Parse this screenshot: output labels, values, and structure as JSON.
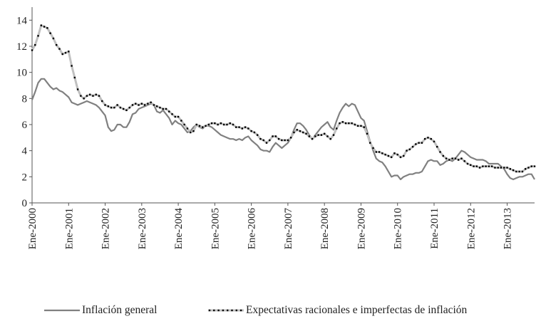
{
  "chart_data": {
    "type": "line",
    "categories": [
      "Ene-2000",
      null,
      null,
      null,
      null,
      null,
      null,
      null,
      null,
      null,
      null,
      null,
      "Ene-2001",
      null,
      null,
      null,
      null,
      null,
      null,
      null,
      null,
      null,
      null,
      null,
      "Ene-2002",
      null,
      null,
      null,
      null,
      null,
      null,
      null,
      null,
      null,
      null,
      null,
      "Ene-2003",
      null,
      null,
      null,
      null,
      null,
      null,
      null,
      null,
      null,
      null,
      null,
      "Ene-2004",
      null,
      null,
      null,
      null,
      null,
      null,
      null,
      null,
      null,
      null,
      null,
      "Ene-2005",
      null,
      null,
      null,
      null,
      null,
      null,
      null,
      null,
      null,
      null,
      null,
      "Ene-2006",
      null,
      null,
      null,
      null,
      null,
      null,
      null,
      null,
      null,
      null,
      null,
      "Ene-2007",
      null,
      null,
      null,
      null,
      null,
      null,
      null,
      null,
      null,
      null,
      null,
      "Ene-2008",
      null,
      null,
      null,
      null,
      null,
      null,
      null,
      null,
      null,
      null,
      null,
      "Ene-2009",
      null,
      null,
      null,
      null,
      null,
      null,
      null,
      null,
      null,
      null,
      null,
      "Ene-2010",
      null,
      null,
      null,
      null,
      null,
      null,
      null,
      null,
      null,
      null,
      null,
      "Ene-2011",
      null,
      null,
      null,
      null,
      null,
      null,
      null,
      null,
      null,
      null,
      null,
      "Ene-2012",
      null,
      null,
      null,
      null,
      null,
      null,
      null,
      null,
      null,
      null,
      null,
      "Ene-2013",
      null,
      null,
      null,
      null,
      null,
      null,
      null,
      null,
      null
    ],
    "series": [
      {
        "name": "Inflación general",
        "color": "#808080",
        "markers": false,
        "values": [
          7.9,
          8.5,
          9.2,
          9.5,
          9.5,
          9.2,
          8.9,
          8.7,
          8.8,
          8.6,
          8.5,
          8.3,
          8.1,
          7.7,
          7.6,
          7.5,
          7.6,
          7.7,
          7.8,
          7.7,
          7.6,
          7.5,
          7.3,
          7.0,
          6.7,
          5.8,
          5.5,
          5.6,
          6.0,
          6.0,
          5.8,
          5.8,
          6.2,
          6.8,
          6.9,
          7.2,
          7.3,
          7.4,
          7.5,
          7.6,
          7.5,
          7.0,
          6.9,
          7.1,
          6.8,
          6.5,
          6.0,
          6.3,
          6.1,
          6.0,
          5.7,
          5.4,
          5.5,
          5.8,
          6.0,
          5.8,
          5.7,
          5.9,
          5.9,
          5.8,
          5.6,
          5.4,
          5.2,
          5.1,
          5.0,
          4.9,
          4.9,
          4.8,
          4.9,
          4.8,
          5.0,
          5.1,
          4.8,
          4.6,
          4.4,
          4.1,
          4.0,
          4.0,
          3.9,
          4.3,
          4.6,
          4.4,
          4.2,
          4.4,
          4.6,
          5.0,
          5.6,
          6.1,
          6.1,
          5.9,
          5.6,
          5.2,
          4.9,
          5.2,
          5.5,
          5.8,
          6.0,
          6.2,
          5.8,
          5.6,
          6.3,
          6.9,
          7.3,
          7.6,
          7.4,
          7.6,
          7.5,
          7.0,
          6.5,
          6.3,
          5.5,
          4.7,
          4.0,
          3.4,
          3.2,
          3.1,
          2.8,
          2.4,
          2.0,
          2.1,
          2.1,
          1.8,
          2.0,
          2.1,
          2.2,
          2.2,
          2.3,
          2.3,
          2.4,
          2.8,
          3.2,
          3.3,
          3.2,
          3.2,
          2.9,
          3.0,
          3.2,
          3.3,
          3.2,
          3.4,
          3.7,
          4.0,
          3.9,
          3.7,
          3.5,
          3.4,
          3.3,
          3.3,
          3.3,
          3.2,
          3.0,
          3.0,
          3.0,
          3.0,
          2.8,
          2.6,
          2.2,
          1.9,
          1.8,
          1.9,
          2.0,
          2.0,
          2.1,
          2.2,
          2.2,
          1.8
        ]
      },
      {
        "name": "Expectativas racionales e imperfectas de inflación",
        "color": "#c0c0c0",
        "marker_color": "#000000",
        "markers": true,
        "values": [
          11.7,
          12.1,
          12.8,
          13.6,
          13.5,
          13.4,
          13.0,
          12.6,
          12.1,
          11.8,
          11.4,
          11.5,
          11.6,
          10.5,
          9.6,
          8.7,
          8.2,
          8.0,
          8.2,
          8.3,
          8.2,
          8.3,
          8.2,
          7.8,
          7.5,
          7.4,
          7.3,
          7.3,
          7.5,
          7.3,
          7.2,
          7.1,
          7.3,
          7.5,
          7.6,
          7.5,
          7.6,
          7.5,
          7.6,
          7.7,
          7.5,
          7.4,
          7.3,
          7.2,
          7.2,
          7.0,
          6.8,
          6.6,
          6.6,
          6.3,
          6.0,
          5.7,
          5.4,
          5.5,
          6.0,
          5.9,
          5.8,
          5.9,
          6.0,
          6.1,
          6.1,
          6.0,
          6.1,
          6.0,
          6.0,
          6.1,
          6.0,
          5.8,
          5.8,
          5.7,
          5.8,
          5.7,
          5.5,
          5.4,
          5.2,
          4.9,
          4.8,
          4.6,
          4.8,
          5.1,
          5.1,
          4.9,
          4.8,
          4.8,
          4.8,
          5.0,
          5.4,
          5.6,
          5.5,
          5.4,
          5.3,
          5.1,
          4.9,
          5.1,
          5.2,
          5.2,
          5.3,
          5.1,
          4.9,
          5.2,
          5.7,
          6.1,
          6.2,
          6.1,
          6.1,
          6.1,
          6.0,
          5.9,
          5.9,
          5.8,
          5.3,
          4.6,
          4.2,
          3.9,
          3.9,
          3.8,
          3.7,
          3.6,
          3.5,
          3.8,
          3.7,
          3.5,
          3.6,
          4.0,
          4.1,
          4.3,
          4.5,
          4.6,
          4.6,
          4.9,
          5.0,
          4.9,
          4.7,
          4.3,
          3.9,
          3.6,
          3.4,
          3.3,
          3.4,
          3.4,
          3.3,
          3.4,
          3.2,
          3.0,
          2.9,
          2.8,
          2.8,
          2.7,
          2.8,
          2.8,
          2.8,
          2.8,
          2.7,
          2.7,
          2.7,
          2.7,
          2.7,
          2.6,
          2.5,
          2.4,
          2.4,
          2.4,
          2.6,
          2.7,
          2.8,
          2.8
        ]
      }
    ],
    "ylim": [
      0,
      15
    ],
    "yticks": [
      0,
      2,
      4,
      6,
      8,
      10,
      12,
      14
    ],
    "grid": false
  }
}
